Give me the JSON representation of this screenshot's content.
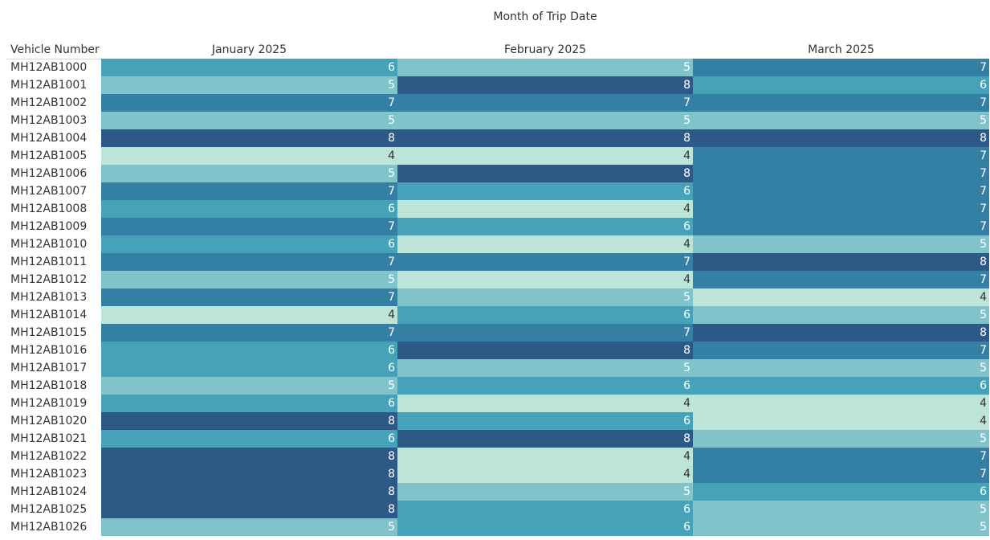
{
  "chart_data": {
    "type": "heatmap",
    "column_header": "Month of Trip Date",
    "row_header": "Vehicle Number",
    "columns": [
      "January 2025",
      "February 2025",
      "March 2025"
    ],
    "rows": [
      "MH12AB1000",
      "MH12AB1001",
      "MH12AB1002",
      "MH12AB1003",
      "MH12AB1004",
      "MH12AB1005",
      "MH12AB1006",
      "MH12AB1007",
      "MH12AB1008",
      "MH12AB1009",
      "MH12AB1010",
      "MH12AB1011",
      "MH12AB1012",
      "MH12AB1013",
      "MH12AB1014",
      "MH12AB1015",
      "MH12AB1016",
      "MH12AB1017",
      "MH12AB1018",
      "MH12AB1019",
      "MH12AB1020",
      "MH12AB1021",
      "MH12AB1022",
      "MH12AB1023",
      "MH12AB1024",
      "MH12AB1025",
      "MH12AB1026"
    ],
    "values": [
      [
        6,
        5,
        7
      ],
      [
        5,
        8,
        6
      ],
      [
        7,
        7,
        7
      ],
      [
        5,
        5,
        5
      ],
      [
        8,
        8,
        8
      ],
      [
        4,
        4,
        7
      ],
      [
        5,
        8,
        7
      ],
      [
        7,
        6,
        7
      ],
      [
        6,
        4,
        7
      ],
      [
        7,
        6,
        7
      ],
      [
        6,
        4,
        5
      ],
      [
        7,
        7,
        8
      ],
      [
        5,
        4,
        7
      ],
      [
        7,
        5,
        4
      ],
      [
        4,
        6,
        5
      ],
      [
        7,
        7,
        8
      ],
      [
        6,
        8,
        7
      ],
      [
        6,
        5,
        5
      ],
      [
        5,
        6,
        6
      ],
      [
        6,
        4,
        4
      ],
      [
        8,
        6,
        4
      ],
      [
        6,
        8,
        5
      ],
      [
        8,
        4,
        7
      ],
      [
        8,
        4,
        7
      ],
      [
        8,
        5,
        6
      ],
      [
        8,
        6,
        5
      ],
      [
        5,
        6,
        5
      ]
    ],
    "color_scale": {
      "4": {
        "fill": "#bce4d8",
        "text": "#333333"
      },
      "5": {
        "fill": "#81c3cb",
        "text": "#ffffff"
      },
      "6": {
        "fill": "#45a2b9",
        "text": "#ffffff"
      },
      "7": {
        "fill": "#347fa4",
        "text": "#ffffff"
      },
      "8": {
        "fill": "#2c5985",
        "text": "#ffffff"
      }
    }
  }
}
